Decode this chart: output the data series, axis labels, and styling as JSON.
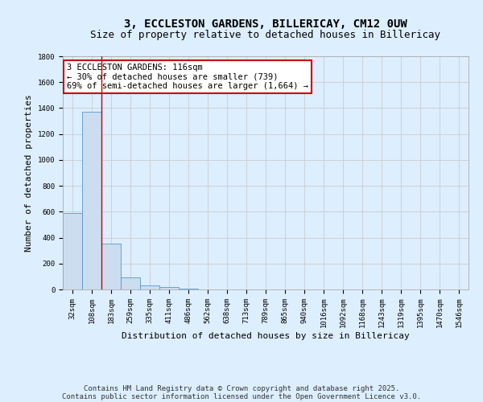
{
  "title": "3, ECCLESTON GARDENS, BILLERICAY, CM12 0UW",
  "subtitle": "Size of property relative to detached houses in Billericay",
  "xlabel": "Distribution of detached houses by size in Billericay",
  "ylabel": "Number of detached properties",
  "categories": [
    "32sqm",
    "108sqm",
    "183sqm",
    "259sqm",
    "335sqm",
    "411sqm",
    "486sqm",
    "562sqm",
    "638sqm",
    "713sqm",
    "789sqm",
    "865sqm",
    "940sqm",
    "1016sqm",
    "1092sqm",
    "1168sqm",
    "1243sqm",
    "1319sqm",
    "1395sqm",
    "1470sqm",
    "1546sqm"
  ],
  "values": [
    590,
    1370,
    355,
    93,
    32,
    18,
    5,
    1,
    0,
    0,
    0,
    0,
    0,
    0,
    0,
    0,
    0,
    0,
    0,
    0,
    0
  ],
  "bar_color": "#ccddf0",
  "bar_edge_color": "#5599cc",
  "grid_color": "#cccccc",
  "bg_color": "#ddeeff",
  "vline_x": 1.5,
  "vline_color": "#cc0000",
  "annotation_line1": "3 ECCLESTON GARDENS: 116sqm",
  "annotation_line2": "← 30% of detached houses are smaller (739)",
  "annotation_line3": "69% of semi-detached houses are larger (1,664) →",
  "annotation_box_color": "#cc0000",
  "annotation_bg": "#ffffff",
  "ylim": [
    0,
    1800
  ],
  "yticks": [
    0,
    200,
    400,
    600,
    800,
    1000,
    1200,
    1400,
    1600,
    1800
  ],
  "footer_line1": "Contains HM Land Registry data © Crown copyright and database right 2025.",
  "footer_line2": "Contains public sector information licensed under the Open Government Licence v3.0.",
  "title_fontsize": 10,
  "subtitle_fontsize": 9,
  "xlabel_fontsize": 8,
  "ylabel_fontsize": 8,
  "tick_fontsize": 6.5,
  "annotation_fontsize": 7.5,
  "footer_fontsize": 6.5
}
